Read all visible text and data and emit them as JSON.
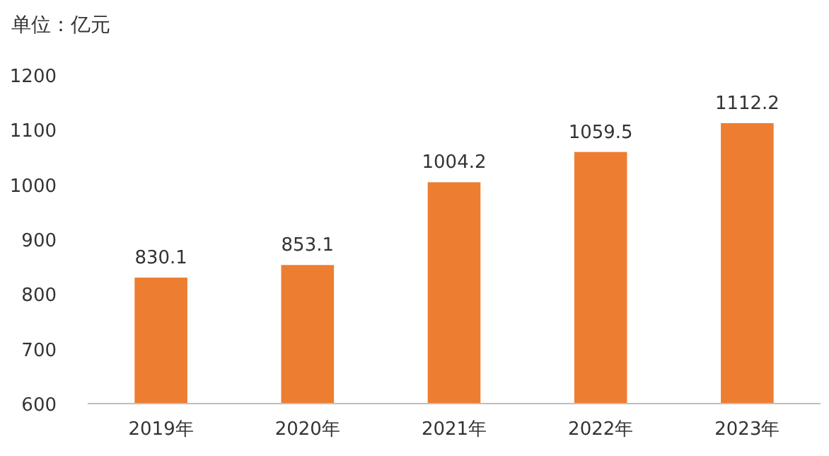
{
  "chart_data": {
    "type": "bar",
    "ylabel": "单位：亿元",
    "categories": [
      "2019年",
      "2020年",
      "2021年",
      "2022年",
      "2023年"
    ],
    "values": [
      830.1,
      853.1,
      1004.2,
      1059.5,
      1112.2
    ],
    "color": "#ed7d31",
    "ylim": [
      600,
      1200
    ],
    "yticks": [
      600,
      700,
      800,
      900,
      1000,
      1100,
      1200
    ],
    "data_labels": true,
    "grid": false
  }
}
